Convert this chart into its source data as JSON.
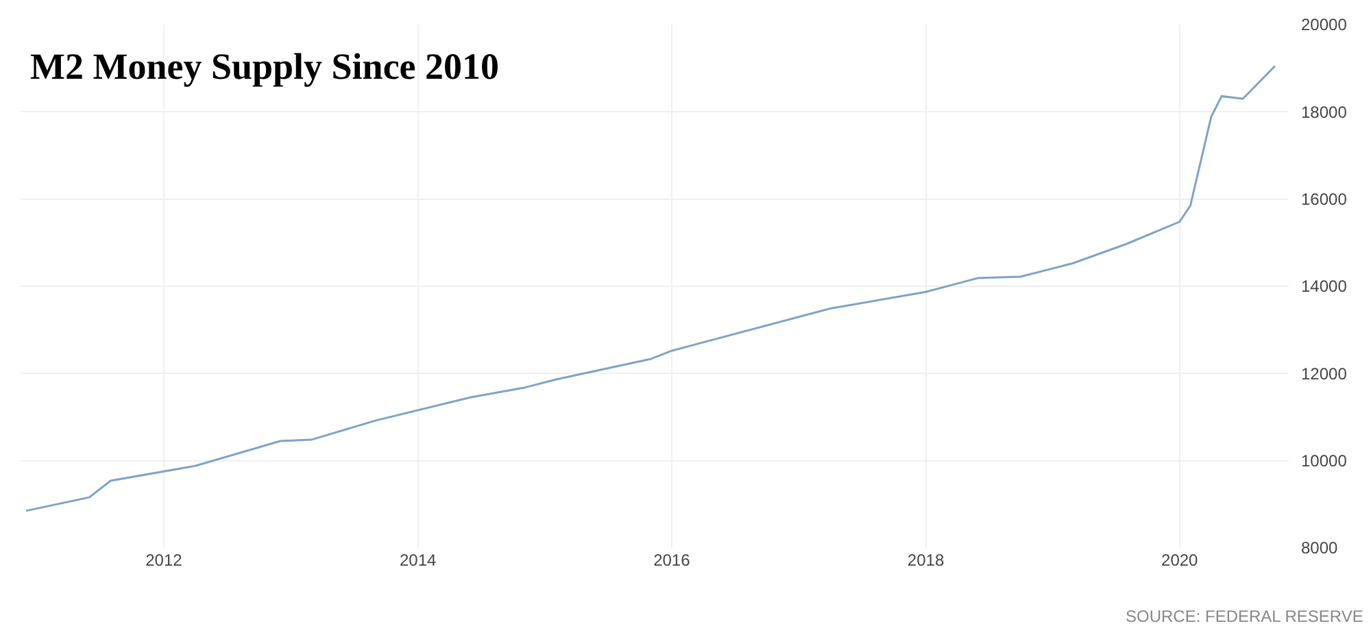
{
  "chart_data": {
    "type": "line",
    "title": "M2 Money Supply Since 2010",
    "x": [
      "2010-12",
      "2011-06",
      "2011-08",
      "2012-04",
      "2012-12",
      "2013-03",
      "2013-09",
      "2014-06",
      "2014-11",
      "2015-02",
      "2015-11",
      "2016-01",
      "2017-04",
      "2018-01",
      "2018-06",
      "2018-10",
      "2019-03",
      "2019-08",
      "2020-01",
      "2020-02",
      "2020-04",
      "2020-05",
      "2020-07",
      "2020-08",
      "2020-10"
    ],
    "series": [
      {
        "color": "#7fa3c8",
        "values": [
          8850,
          9160,
          9540,
          9880,
          10450,
          10480,
          10920,
          11450,
          11670,
          11860,
          12330,
          12520,
          13490,
          13870,
          14190,
          14220,
          14530,
          14970,
          15480,
          15850,
          17890,
          18360,
          18300,
          18550,
          19050
        ]
      }
    ],
    "xlim": [
      "2010-11-15",
      "2020-11-10"
    ],
    "xticks": [
      "2012",
      "2014",
      "2016",
      "2018",
      "2020"
    ],
    "ylim": [
      8000,
      20000
    ],
    "yticks": [
      8000,
      10000,
      12000,
      14000,
      16000,
      18000,
      20000
    ],
    "grid": true,
    "marker": "none",
    "line_style": "solid",
    "annotations": [
      "SOURCE: FEDERAL RESERVE"
    ]
  }
}
